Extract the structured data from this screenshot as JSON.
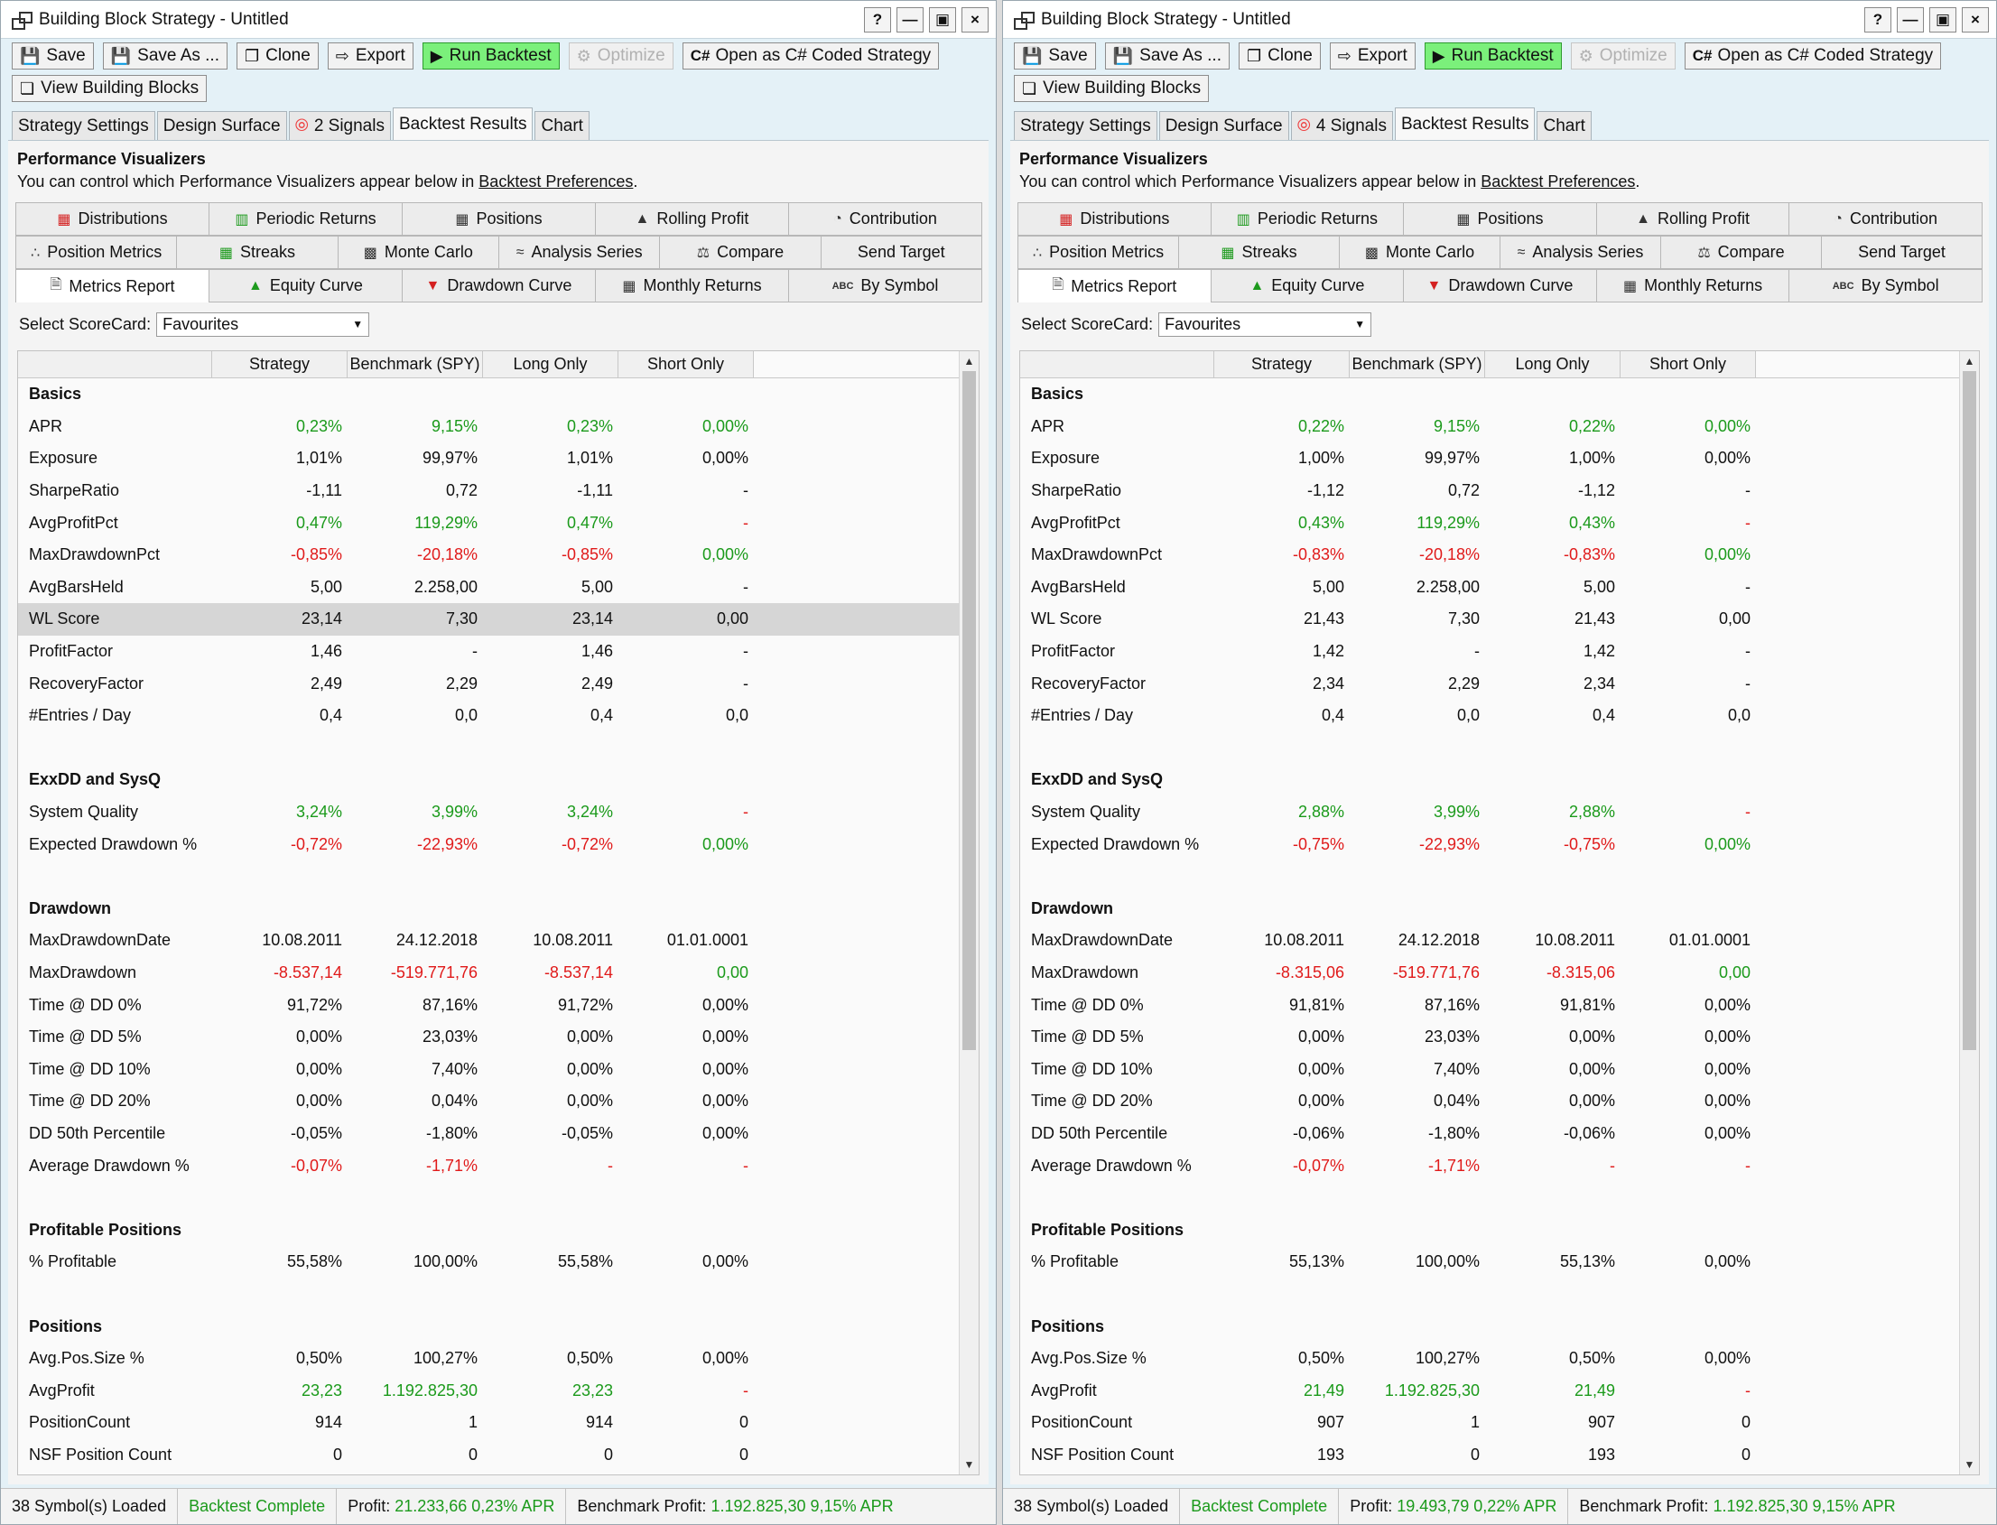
{
  "windows": [
    {
      "id": "left",
      "title": "Building Block Strategy - Untitled",
      "toolbar": {
        "save": "Save",
        "save_as": "Save As ...",
        "clone": "Clone",
        "export": "Export",
        "run_backtest": "Run Backtest",
        "optimize": "Optimize",
        "open_cs": "Open as C# Coded Strategy",
        "view_blocks": "View Building Blocks"
      },
      "tabs": {
        "strategy_settings": "Strategy Settings",
        "design_surface": "Design Surface",
        "signals": "2 Signals",
        "backtest_results": "Backtest Results",
        "chart": "Chart"
      },
      "pv": {
        "title": "Performance Visualizers",
        "desc_prefix": "You can control which Performance Visualizers appear below in ",
        "desc_link": "Backtest Preferences",
        "desc_suffix": "."
      },
      "viz": {
        "distributions": "Distributions",
        "periodic_returns": "Periodic Returns",
        "positions": "Positions",
        "rolling_profit": "Rolling Profit",
        "contribution": "Contribution",
        "position_metrics": "Position Metrics",
        "streaks": "Streaks",
        "monte_carlo": "Monte Carlo",
        "analysis_series": "Analysis Series",
        "compare": "Compare",
        "send_target": "Send Target",
        "metrics_report": "Metrics Report",
        "equity_curve": "Equity Curve",
        "drawdown_curve": "Drawdown Curve",
        "monthly_returns": "Monthly Returns",
        "by_symbol": "By Symbol"
      },
      "scorecard": {
        "label": "Select ScoreCard:",
        "value": "Favourites"
      },
      "columns": [
        "Strategy",
        "Benchmark (SPY)",
        "Long Only",
        "Short Only"
      ],
      "rows": [
        {
          "name": "Basics",
          "section": true
        },
        {
          "name": "APR",
          "vals": [
            "0,23%",
            "9,15%",
            "0,23%",
            "0,00%"
          ],
          "cls": [
            "pos",
            "pos",
            "pos",
            "pos"
          ]
        },
        {
          "name": "Exposure",
          "vals": [
            "1,01%",
            "99,97%",
            "1,01%",
            "0,00%"
          ]
        },
        {
          "name": "SharpeRatio",
          "vals": [
            "-1,11",
            "0,72",
            "-1,11",
            "-"
          ]
        },
        {
          "name": "AvgProfitPct",
          "vals": [
            "0,47%",
            "119,29%",
            "0,47%",
            "-"
          ],
          "cls": [
            "pos",
            "pos",
            "pos",
            "neg"
          ]
        },
        {
          "name": "MaxDrawdownPct",
          "vals": [
            "-0,85%",
            "-20,18%",
            "-0,85%",
            "0,00%"
          ],
          "cls": [
            "neg",
            "neg",
            "neg",
            "pos"
          ]
        },
        {
          "name": "AvgBarsHeld",
          "vals": [
            "5,00",
            "2.258,00",
            "5,00",
            "-"
          ]
        },
        {
          "name": "WL Score",
          "vals": [
            "23,14",
            "7,30",
            "23,14",
            "0,00"
          ],
          "sel": true
        },
        {
          "name": "ProfitFactor",
          "vals": [
            "1,46",
            "-",
            "1,46",
            "-"
          ]
        },
        {
          "name": "RecoveryFactor",
          "vals": [
            "2,49",
            "2,29",
            "2,49",
            "-"
          ]
        },
        {
          "name": "#Entries / Day",
          "vals": [
            "0,4",
            "0,0",
            "0,4",
            "0,0"
          ]
        },
        {
          "name": "",
          "blank": true
        },
        {
          "name": "ExxDD and SysQ",
          "section": true
        },
        {
          "name": "System Quality",
          "vals": [
            "3,24%",
            "3,99%",
            "3,24%",
            "-"
          ],
          "cls": [
            "pos",
            "pos",
            "pos",
            "neg"
          ]
        },
        {
          "name": "Expected Drawdown %",
          "vals": [
            "-0,72%",
            "-22,93%",
            "-0,72%",
            "0,00%"
          ],
          "cls": [
            "neg",
            "neg",
            "neg",
            "pos"
          ]
        },
        {
          "name": "",
          "blank": true
        },
        {
          "name": "Drawdown",
          "section": true
        },
        {
          "name": "MaxDrawdownDate",
          "vals": [
            "10.08.2011",
            "24.12.2018",
            "10.08.2011",
            "01.01.0001"
          ]
        },
        {
          "name": "MaxDrawdown",
          "vals": [
            "-8.537,14",
            "-519.771,76",
            "-8.537,14",
            "0,00"
          ],
          "cls": [
            "neg",
            "neg",
            "neg",
            "pos"
          ]
        },
        {
          "name": "Time @ DD 0%",
          "vals": [
            "91,72%",
            "87,16%",
            "91,72%",
            "0,00%"
          ]
        },
        {
          "name": "Time @ DD 5%",
          "vals": [
            "0,00%",
            "23,03%",
            "0,00%",
            "0,00%"
          ]
        },
        {
          "name": "Time @ DD 10%",
          "vals": [
            "0,00%",
            "7,40%",
            "0,00%",
            "0,00%"
          ]
        },
        {
          "name": "Time @ DD 20%",
          "vals": [
            "0,00%",
            "0,04%",
            "0,00%",
            "0,00%"
          ]
        },
        {
          "name": "DD 50th Percentile",
          "vals": [
            "-0,05%",
            "-1,80%",
            "-0,05%",
            "0,00%"
          ]
        },
        {
          "name": "Average Drawdown %",
          "vals": [
            "-0,07%",
            "-1,71%",
            "-",
            "-"
          ],
          "cls": [
            "neg",
            "neg",
            "neg",
            "neg"
          ]
        },
        {
          "name": "",
          "blank": true
        },
        {
          "name": "Profitable Positions",
          "section": true
        },
        {
          "name": "% Profitable",
          "vals": [
            "55,58%",
            "100,00%",
            "55,58%",
            "0,00%"
          ]
        },
        {
          "name": "",
          "blank": true
        },
        {
          "name": "Positions",
          "section": true
        },
        {
          "name": "Avg.Pos.Size %",
          "vals": [
            "0,50%",
            "100,27%",
            "0,50%",
            "0,00%"
          ]
        },
        {
          "name": "AvgProfit",
          "vals": [
            "23,23",
            "1.192.825,30",
            "23,23",
            "-"
          ],
          "cls": [
            "pos",
            "pos",
            "pos",
            "neg"
          ]
        },
        {
          "name": "PositionCount",
          "vals": [
            "914",
            "1",
            "914",
            "0"
          ]
        },
        {
          "name": "NSF Position Count",
          "vals": [
            "0",
            "0",
            "0",
            "0"
          ]
        }
      ],
      "status": {
        "symbols": "38 Symbol(s) Loaded",
        "state": "Backtest Complete",
        "profit_label": "Profit:",
        "profit": "21.233,66 0,23% APR",
        "bench_label": "Benchmark Profit:",
        "bench": "1.192.825,30 9,15% APR"
      }
    },
    {
      "id": "right",
      "title": "Building Block Strategy - Untitled",
      "toolbar": {
        "save": "Save",
        "save_as": "Save As ...",
        "clone": "Clone",
        "export": "Export",
        "run_backtest": "Run Backtest",
        "optimize": "Optimize",
        "open_cs": "Open as C# Coded Strategy",
        "view_blocks": "View Building Blocks"
      },
      "tabs": {
        "strategy_settings": "Strategy Settings",
        "design_surface": "Design Surface",
        "signals": "4 Signals",
        "backtest_results": "Backtest Results",
        "chart": "Chart"
      },
      "pv": {
        "title": "Performance Visualizers",
        "desc_prefix": "You can control which Performance Visualizers appear below in ",
        "desc_link": "Backtest Preferences",
        "desc_suffix": "."
      },
      "viz": {
        "distributions": "Distributions",
        "periodic_returns": "Periodic Returns",
        "positions": "Positions",
        "rolling_profit": "Rolling Profit",
        "contribution": "Contribution",
        "position_metrics": "Position Metrics",
        "streaks": "Streaks",
        "monte_carlo": "Monte Carlo",
        "analysis_series": "Analysis Series",
        "compare": "Compare",
        "send_target": "Send Target",
        "metrics_report": "Metrics Report",
        "equity_curve": "Equity Curve",
        "drawdown_curve": "Drawdown Curve",
        "monthly_returns": "Monthly Returns",
        "by_symbol": "By Symbol"
      },
      "scorecard": {
        "label": "Select ScoreCard:",
        "value": "Favourites"
      },
      "columns": [
        "Strategy",
        "Benchmark (SPY)",
        "Long Only",
        "Short Only"
      ],
      "rows": [
        {
          "name": "Basics",
          "section": true
        },
        {
          "name": "APR",
          "vals": [
            "0,22%",
            "9,15%",
            "0,22%",
            "0,00%"
          ],
          "cls": [
            "pos",
            "pos",
            "pos",
            "pos"
          ]
        },
        {
          "name": "Exposure",
          "vals": [
            "1,00%",
            "99,97%",
            "1,00%",
            "0,00%"
          ]
        },
        {
          "name": "SharpeRatio",
          "vals": [
            "-1,12",
            "0,72",
            "-1,12",
            "-"
          ]
        },
        {
          "name": "AvgProfitPct",
          "vals": [
            "0,43%",
            "119,29%",
            "0,43%",
            "-"
          ],
          "cls": [
            "pos",
            "pos",
            "pos",
            "neg"
          ]
        },
        {
          "name": "MaxDrawdownPct",
          "vals": [
            "-0,83%",
            "-20,18%",
            "-0,83%",
            "0,00%"
          ],
          "cls": [
            "neg",
            "neg",
            "neg",
            "pos"
          ]
        },
        {
          "name": "AvgBarsHeld",
          "vals": [
            "5,00",
            "2.258,00",
            "5,00",
            "-"
          ]
        },
        {
          "name": "WL Score",
          "vals": [
            "21,43",
            "7,30",
            "21,43",
            "0,00"
          ]
        },
        {
          "name": "ProfitFactor",
          "vals": [
            "1,42",
            "-",
            "1,42",
            "-"
          ]
        },
        {
          "name": "RecoveryFactor",
          "vals": [
            "2,34",
            "2,29",
            "2,34",
            "-"
          ]
        },
        {
          "name": "#Entries / Day",
          "vals": [
            "0,4",
            "0,0",
            "0,4",
            "0,0"
          ]
        },
        {
          "name": "",
          "blank": true
        },
        {
          "name": "ExxDD and SysQ",
          "section": true
        },
        {
          "name": "System Quality",
          "vals": [
            "2,88%",
            "3,99%",
            "2,88%",
            "-"
          ],
          "cls": [
            "pos",
            "pos",
            "pos",
            "neg"
          ]
        },
        {
          "name": "Expected Drawdown %",
          "vals": [
            "-0,75%",
            "-22,93%",
            "-0,75%",
            "0,00%"
          ],
          "cls": [
            "neg",
            "neg",
            "neg",
            "pos"
          ]
        },
        {
          "name": "",
          "blank": true
        },
        {
          "name": "Drawdown",
          "section": true
        },
        {
          "name": "MaxDrawdownDate",
          "vals": [
            "10.08.2011",
            "24.12.2018",
            "10.08.2011",
            "01.01.0001"
          ]
        },
        {
          "name": "MaxDrawdown",
          "vals": [
            "-8.315,06",
            "-519.771,76",
            "-8.315,06",
            "0,00"
          ],
          "cls": [
            "neg",
            "neg",
            "neg",
            "pos"
          ]
        },
        {
          "name": "Time @ DD 0%",
          "vals": [
            "91,81%",
            "87,16%",
            "91,81%",
            "0,00%"
          ]
        },
        {
          "name": "Time @ DD 5%",
          "vals": [
            "0,00%",
            "23,03%",
            "0,00%",
            "0,00%"
          ]
        },
        {
          "name": "Time @ DD 10%",
          "vals": [
            "0,00%",
            "7,40%",
            "0,00%",
            "0,00%"
          ]
        },
        {
          "name": "Time @ DD 20%",
          "vals": [
            "0,00%",
            "0,04%",
            "0,00%",
            "0,00%"
          ]
        },
        {
          "name": "DD 50th Percentile",
          "vals": [
            "-0,06%",
            "-1,80%",
            "-0,06%",
            "0,00%"
          ]
        },
        {
          "name": "Average Drawdown %",
          "vals": [
            "-0,07%",
            "-1,71%",
            "-",
            "-"
          ],
          "cls": [
            "neg",
            "neg",
            "neg",
            "neg"
          ]
        },
        {
          "name": "",
          "blank": true
        },
        {
          "name": "Profitable Positions",
          "section": true
        },
        {
          "name": "% Profitable",
          "vals": [
            "55,13%",
            "100,00%",
            "55,13%",
            "0,00%"
          ]
        },
        {
          "name": "",
          "blank": true
        },
        {
          "name": "Positions",
          "section": true
        },
        {
          "name": "Avg.Pos.Size %",
          "vals": [
            "0,50%",
            "100,27%",
            "0,50%",
            "0,00%"
          ]
        },
        {
          "name": "AvgProfit",
          "vals": [
            "21,49",
            "1.192.825,30",
            "21,49",
            "-"
          ],
          "cls": [
            "pos",
            "pos",
            "pos",
            "neg"
          ]
        },
        {
          "name": "PositionCount",
          "vals": [
            "907",
            "1",
            "907",
            "0"
          ]
        },
        {
          "name": "NSF Position Count",
          "vals": [
            "193",
            "0",
            "193",
            "0"
          ]
        }
      ],
      "status": {
        "symbols": "38 Symbol(s) Loaded",
        "state": "Backtest Complete",
        "profit_label": "Profit:",
        "profit": "19.493,79 0,22% APR",
        "bench_label": "Benchmark Profit:",
        "bench": "1.192.825,30 9,15% APR"
      }
    }
  ],
  "colors": {
    "positive": "#1b9a1b",
    "negative": "#e01a1a",
    "run_button": "#7bf07b",
    "panel_bg": "#e4f1f7"
  },
  "icons": [
    "save-icon",
    "clone-icon",
    "export-icon",
    "play-icon",
    "gear-icon",
    "csharp-icon",
    "blocks-icon",
    "signal-icon"
  ]
}
